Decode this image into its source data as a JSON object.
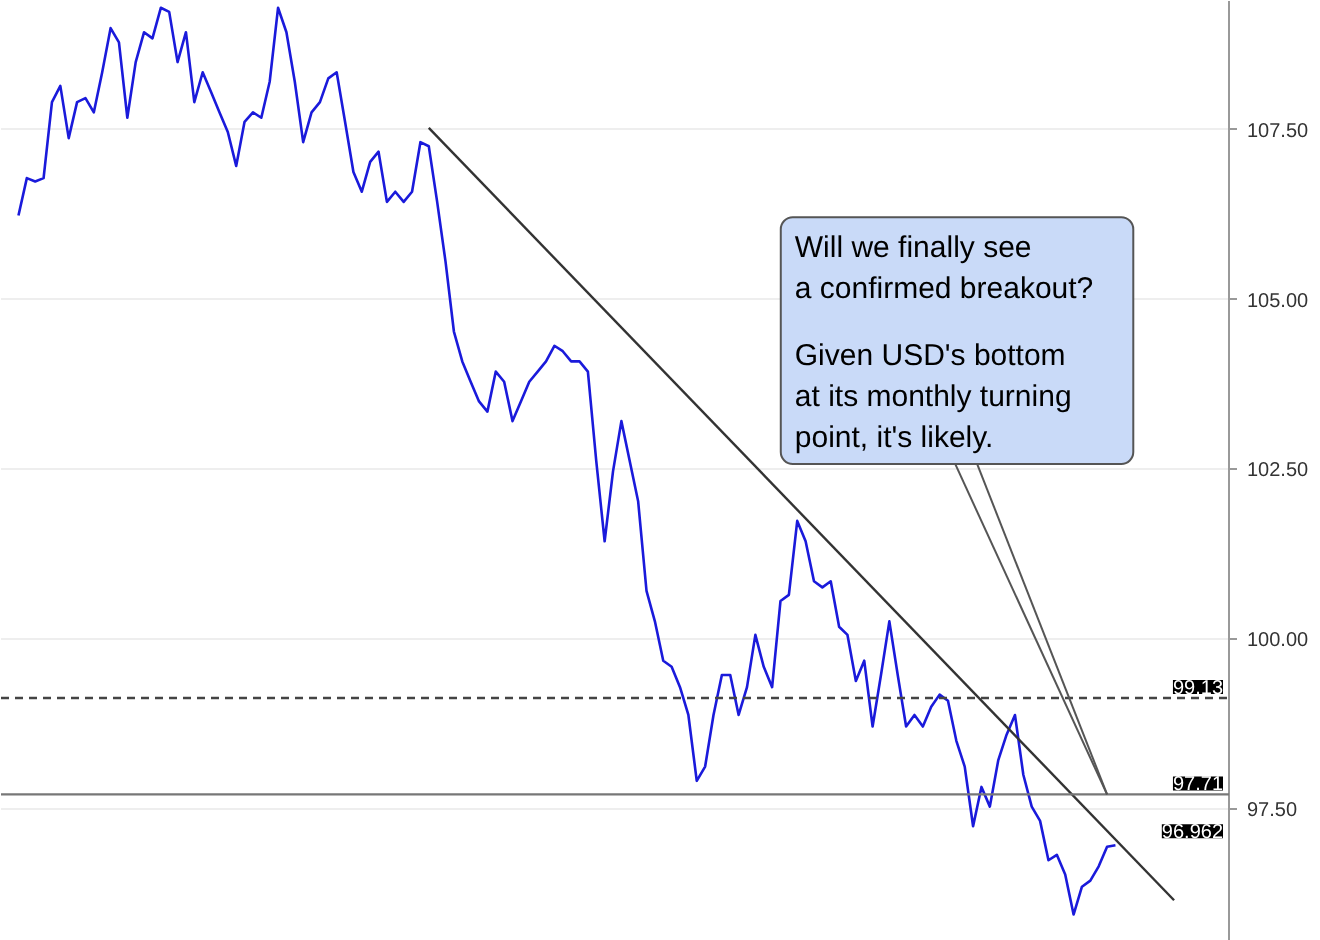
{
  "chart_data": {
    "type": "line",
    "categories": [
      null,
      null,
      null,
      null,
      null,
      null,
      null,
      null,
      null,
      null,
      null,
      null,
      null,
      null,
      null,
      null,
      null,
      null,
      null,
      null,
      null,
      null,
      null,
      null,
      null,
      null,
      null,
      null,
      null,
      null,
      null,
      null,
      null,
      null,
      null,
      null,
      null,
      null,
      null,
      null,
      null,
      null,
      null,
      null,
      null,
      null,
      null,
      null,
      null,
      null,
      null,
      null,
      null,
      null,
      null,
      null,
      null,
      null,
      null,
      null,
      null,
      null,
      null,
      null,
      null,
      null,
      null,
      null,
      null,
      null,
      null,
      null,
      null,
      null,
      null,
      null,
      null,
      null,
      null,
      null,
      null,
      null,
      null,
      null,
      null,
      null,
      null,
      null,
      null,
      null,
      null,
      null,
      null,
      null,
      null,
      null,
      null,
      null,
      null,
      null,
      null,
      null,
      null,
      null,
      null,
      null,
      null,
      null,
      null,
      null,
      null,
      null,
      null,
      null,
      null,
      null,
      null,
      null,
      null,
      null,
      null,
      null,
      null,
      null,
      null,
      null,
      null,
      null,
      null,
      null,
      null,
      null,
      null,
      null,
      null,
      null,
      null,
      null,
      null
    ],
    "ylim": [
      95.55,
      109.4
    ],
    "yticks": [
      {
        "value": 97.5,
        "label": "97.50"
      },
      {
        "value": 100,
        "label": "100.00"
      },
      {
        "value": 102.5,
        "label": "102.50"
      },
      {
        "value": 105,
        "label": "105.00"
      },
      {
        "value": 107.5,
        "label": "107.50"
      }
    ],
    "tick_labels": "y",
    "grid": "y",
    "series": [
      {
        "color": "#1a1adb",
        "values": [
          106.24,
          106.79,
          106.74,
          106.79,
          107.91,
          108.15,
          107.38,
          107.91,
          107.97,
          107.76,
          108.35,
          109.0,
          108.79,
          107.68,
          108.5,
          108.94,
          108.85,
          109.3,
          109.24,
          108.5,
          108.94,
          107.91,
          108.35,
          108.06,
          107.76,
          107.47,
          106.97,
          107.62,
          107.76,
          107.68,
          108.21,
          109.3,
          108.94,
          108.21,
          107.32,
          107.76,
          107.91,
          108.26,
          108.35,
          107.62,
          106.88,
          106.59,
          107.03,
          107.18,
          106.44,
          106.59,
          106.44,
          106.59,
          107.32,
          107.26,
          106.44,
          105.56,
          104.53,
          104.09,
          103.79,
          103.5,
          103.35,
          103.94,
          103.79,
          103.21,
          103.5,
          103.79,
          103.94,
          104.09,
          104.32,
          104.24,
          104.09,
          104.09,
          103.94,
          102.62,
          101.44,
          102.47,
          103.21,
          102.62,
          102.03,
          100.71,
          100.26,
          99.68,
          99.59,
          99.29,
          98.88,
          97.91,
          98.12,
          98.88,
          99.47,
          99.47,
          98.88,
          99.29,
          100.06,
          99.59,
          99.29,
          100.56,
          100.65,
          101.74,
          101.44,
          100.85,
          100.76,
          100.85,
          100.18,
          100.06,
          99.38,
          99.68,
          98.71,
          99.47,
          100.26,
          99.47,
          98.71,
          98.88,
          98.71,
          99.0,
          99.18,
          99.09,
          98.5,
          98.12,
          97.24,
          97.82,
          97.53,
          98.21,
          98.59,
          98.88,
          98.0,
          97.53,
          97.32,
          96.74,
          96.82,
          96.53,
          95.94,
          96.35,
          96.44,
          96.65,
          96.94,
          96.962,
          null,
          null,
          null,
          null,
          null,
          null,
          null
        ]
      },
      {
        "color": "#333333",
        "values": [
          null,
          null,
          null,
          null,
          null,
          null,
          null,
          null,
          null,
          null,
          null,
          null,
          null,
          null,
          null,
          null,
          null,
          null,
          null,
          null,
          null,
          null,
          null,
          null,
          null,
          null,
          null,
          null,
          null,
          null,
          null,
          null,
          null,
          null,
          null,
          null,
          null,
          null,
          null,
          null,
          null,
          null,
          null,
          null,
          null,
          null,
          null,
          null,
          null,
          107.53,
          null,
          null,
          null,
          null,
          null,
          null,
          null,
          null,
          null,
          null,
          null,
          null,
          null,
          null,
          null,
          null,
          null,
          null,
          null,
          null,
          null,
          null,
          null,
          null,
          null,
          null,
          null,
          null,
          null,
          null,
          null,
          null,
          null,
          null,
          null,
          null,
          null,
          null,
          null,
          null,
          null,
          null,
          null,
          null,
          null,
          null,
          null,
          null,
          null,
          null,
          null,
          null,
          null,
          null,
          null,
          null,
          null,
          null,
          null,
          null,
          null,
          null,
          null,
          null,
          null,
          null,
          null,
          null,
          null,
          null,
          null,
          null,
          null,
          null,
          null,
          null,
          null,
          null,
          null,
          null,
          null,
          null,
          null,
          null,
          null,
          null,
          null,
          null,
          96.15
        ]
      }
    ],
    "ref_lines": [
      {
        "axis": "y",
        "value": 99.13,
        "label": "99.13",
        "line_style": "dashed",
        "color": "#444444"
      },
      {
        "axis": "y",
        "value": 97.71,
        "label": "97.71",
        "line_style": "solid",
        "color": "#777777"
      }
    ],
    "annotations": [
      "Will we finally see\na confirmed breakout?",
      "Given USD's bottom\nat its monthly turning\npoint, it's likely.",
      "96.962"
    ]
  }
}
